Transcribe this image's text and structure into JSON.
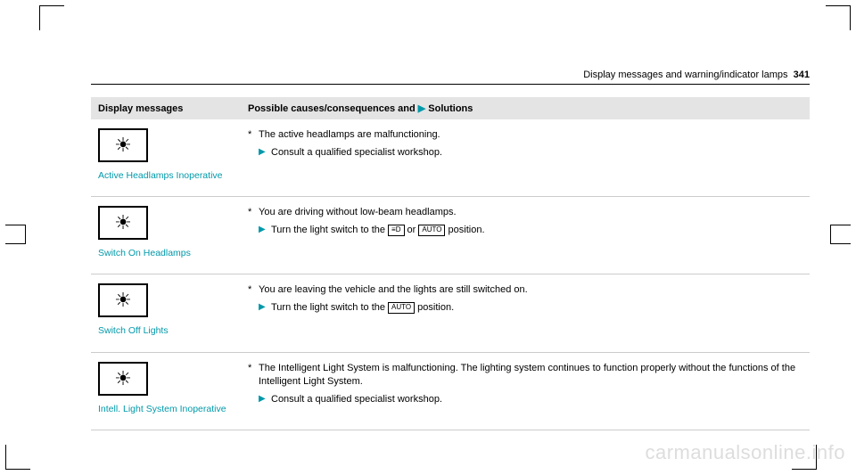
{
  "header": {
    "section_title": "Display messages and warning/indicator lamps",
    "page_number": "341"
  },
  "table": {
    "columns": {
      "left": "Display messages",
      "right_prefix": "Possible causes/consequences and ",
      "right_suffix": "Solutions"
    },
    "rows": [
      {
        "label": "Active Headlamps Inoperative",
        "cause": "The active headlamps are malfunctioning.",
        "solutions": [
          {
            "text_before": "Consult a qualified specialist workshop.",
            "boxes": []
          }
        ]
      },
      {
        "label": "Switch On Headlamps",
        "cause": "You are driving without low-beam headlamps.",
        "solutions": [
          {
            "text_before": "Turn the light switch to the ",
            "boxes": [
              "≡D"
            ],
            "mid": " or ",
            "boxes2": [
              "AUTO"
            ],
            "text_after": " position."
          }
        ]
      },
      {
        "label": "Switch Off Lights",
        "cause": "You are leaving the vehicle and the lights are still switched on.",
        "solutions": [
          {
            "text_before": "Turn the light switch to the ",
            "boxes": [
              "AUTO"
            ],
            "text_after": " position."
          }
        ]
      },
      {
        "label": "Intell. Light System Inoperative",
        "cause": "The Intelligent Light System is malfunctioning. The lighting system continues to function properly without the functions of the Intelligent Light System.",
        "solutions": [
          {
            "text_before": "Consult a qualified specialist workshop.",
            "boxes": []
          }
        ]
      }
    ]
  },
  "watermark": "carmanualsonline.info",
  "colors": {
    "accent": "#0099aa",
    "header_bg": "#e4e4e4",
    "border": "#cccccc"
  }
}
